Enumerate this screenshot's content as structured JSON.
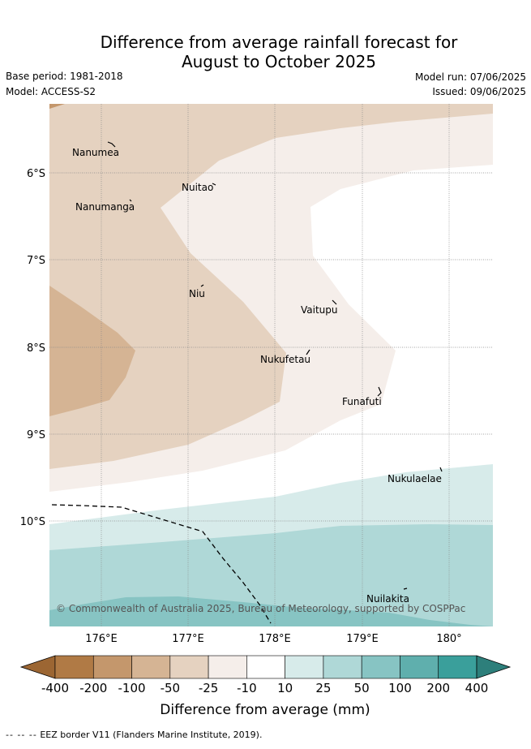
{
  "title_line1": "Difference from average rainfall forecast for",
  "title_line2": "August to October 2025",
  "base_period": "Base period: 1981-2018",
  "model": "Model: ACCESS-S2",
  "model_run": "Model run: 07/06/2025",
  "issued": "Issued: 09/06/2025",
  "copyright": "© Commonwealth of Australia 2025, Bureau of Meteorology, supported by COSPPac",
  "lat_labels": [
    "6°S",
    "7°S",
    "8°S",
    "9°S",
    "10°S"
  ],
  "lon_labels": [
    "176°E",
    "177°E",
    "178°E",
    "179°E",
    "180°"
  ],
  "places": [
    {
      "name": "Nanumea"
    },
    {
      "name": "Nuitao"
    },
    {
      "name": "Nanumanga"
    },
    {
      "name": "Niu"
    },
    {
      "name": "Vaitupu"
    },
    {
      "name": "Nukufetau"
    },
    {
      "name": "Funafuti"
    },
    {
      "name": "Nukulaelae"
    },
    {
      "name": "Nuilakita"
    }
  ],
  "legend": {
    "labels": [
      "-400",
      "-200",
      "-100",
      "-50",
      "-25",
      "-10",
      "10",
      "25",
      "50",
      "100",
      "200",
      "400"
    ],
    "colors": [
      "#9c6633",
      "#b07a45",
      "#c4976c",
      "#d5b494",
      "#e5d2c0",
      "#f5eeea",
      "#ffffff",
      "#d7ebea",
      "#afd8d7",
      "#87c4c3",
      "#5fafad",
      "#3a9f9b",
      "#2d7f7b"
    ],
    "caption": "Difference from average (mm)"
  },
  "footer": {
    "marker": "-- -- --",
    "text": "EEZ border V11 (Flanders Marine Institute, 2019)."
  }
}
